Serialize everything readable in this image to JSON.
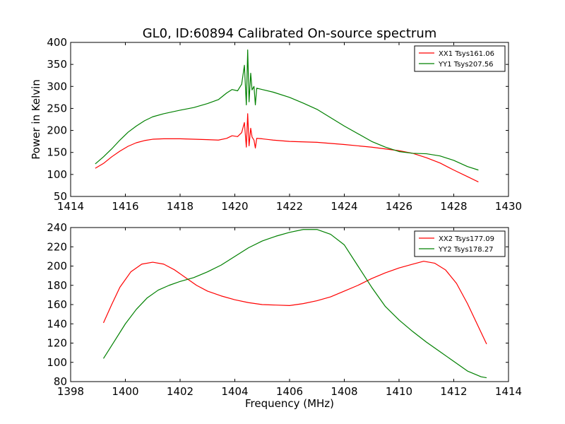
{
  "title": "GL0, ID:60894 Calibrated On-source spectrum",
  "colors": {
    "xx": "#ff0000",
    "yy": "#008000"
  },
  "chart_data": [
    {
      "type": "line",
      "ylabel": "Power in Kelvin",
      "xlabel": "",
      "xlim": [
        1414,
        1430
      ],
      "ylim": [
        50,
        400
      ],
      "xticks": [
        1414,
        1416,
        1418,
        1420,
        1422,
        1424,
        1426,
        1428,
        1430
      ],
      "yticks": [
        50,
        100,
        150,
        200,
        250,
        300,
        350,
        400
      ],
      "legend_position": "top-right",
      "series": [
        {
          "name": "XX1 Tsys161.06",
          "color": "#ff0000",
          "x": [
            1414.9,
            1415.2,
            1415.5,
            1415.8,
            1416.1,
            1416.4,
            1416.7,
            1417.0,
            1417.4,
            1418.0,
            1418.5,
            1419.0,
            1419.4,
            1419.7,
            1419.9,
            1420.1,
            1420.25,
            1420.35,
            1420.42,
            1420.47,
            1420.52,
            1420.58,
            1420.63,
            1420.7,
            1420.75,
            1420.8,
            1421.0,
            1421.4,
            1422.0,
            1423.0,
            1424.0,
            1425.0,
            1426.0,
            1426.5,
            1427.0,
            1427.5,
            1428.0,
            1428.5,
            1428.9
          ],
          "y": [
            114,
            125,
            140,
            153,
            164,
            172,
            177,
            180,
            181,
            181,
            180,
            179,
            178,
            182,
            188,
            186,
            195,
            218,
            162,
            238,
            165,
            205,
            185,
            178,
            160,
            182,
            181,
            178,
            175,
            173,
            168,
            162,
            154,
            148,
            138,
            126,
            110,
            95,
            83
          ]
        },
        {
          "name": "YY1 Tsys207.56",
          "color": "#008000",
          "x": [
            1414.9,
            1415.2,
            1415.5,
            1415.8,
            1416.1,
            1416.4,
            1416.7,
            1417.0,
            1417.4,
            1418.0,
            1418.5,
            1419.0,
            1419.4,
            1419.7,
            1419.9,
            1420.1,
            1420.25,
            1420.35,
            1420.42,
            1420.47,
            1420.52,
            1420.58,
            1420.63,
            1420.7,
            1420.75,
            1420.8,
            1421.0,
            1421.4,
            1422.0,
            1422.5,
            1423.0,
            1424.0,
            1425.0,
            1425.5,
            1426.0,
            1426.5,
            1427.0,
            1427.5,
            1428.0,
            1428.5,
            1428.9
          ],
          "y": [
            124,
            140,
            158,
            178,
            196,
            210,
            222,
            231,
            238,
            246,
            252,
            261,
            270,
            285,
            293,
            290,
            305,
            348,
            258,
            383,
            265,
            330,
            292,
            300,
            258,
            296,
            293,
            287,
            275,
            262,
            248,
            210,
            175,
            162,
            152,
            148,
            147,
            142,
            132,
            118,
            110
          ]
        }
      ]
    },
    {
      "type": "line",
      "ylabel": "",
      "xlabel": "Frequency (MHz)",
      "xlim": [
        1398,
        1414
      ],
      "ylim": [
        80,
        240
      ],
      "xticks": [
        1398,
        1400,
        1402,
        1404,
        1406,
        1408,
        1410,
        1412,
        1414
      ],
      "yticks": [
        80,
        100,
        120,
        140,
        160,
        180,
        200,
        220,
        240
      ],
      "legend_position": "top-right",
      "series": [
        {
          "name": "XX2 Tsys177.09",
          "color": "#ff0000",
          "x": [
            1399.2,
            1399.5,
            1399.8,
            1400.2,
            1400.6,
            1401.0,
            1401.4,
            1401.8,
            1402.2,
            1402.6,
            1403.0,
            1403.5,
            1404.0,
            1404.5,
            1405.0,
            1405.5,
            1406.0,
            1406.5,
            1407.0,
            1407.5,
            1408.0,
            1408.5,
            1409.0,
            1409.5,
            1410.0,
            1410.5,
            1410.9,
            1411.3,
            1411.7,
            1412.1,
            1412.5,
            1412.9,
            1413.2
          ],
          "y": [
            141,
            160,
            178,
            194,
            202,
            204,
            202,
            196,
            188,
            180,
            174,
            169,
            165,
            162,
            160,
            159.5,
            159,
            161,
            164,
            168,
            174,
            180,
            187,
            193,
            198,
            202,
            205,
            203,
            196,
            182,
            161,
            137,
            119
          ]
        },
        {
          "name": "YY2 Tsys178.27",
          "color": "#008000",
          "x": [
            1399.2,
            1399.6,
            1400.0,
            1400.4,
            1400.8,
            1401.2,
            1401.6,
            1402.0,
            1402.5,
            1403.0,
            1403.5,
            1404.0,
            1404.5,
            1405.0,
            1405.5,
            1406.0,
            1406.5,
            1407.0,
            1407.5,
            1408.0,
            1408.5,
            1409.0,
            1409.5,
            1410.0,
            1410.5,
            1411.0,
            1411.5,
            1412.0,
            1412.5,
            1413.0,
            1413.2
          ],
          "y": [
            104,
            122,
            140,
            155,
            167,
            175,
            180,
            184,
            188,
            194,
            201,
            210,
            219,
            226,
            231,
            235,
            238,
            238,
            233,
            222,
            200,
            178,
            158,
            144,
            132,
            121,
            111,
            101,
            91,
            85,
            84
          ]
        }
      ]
    }
  ]
}
